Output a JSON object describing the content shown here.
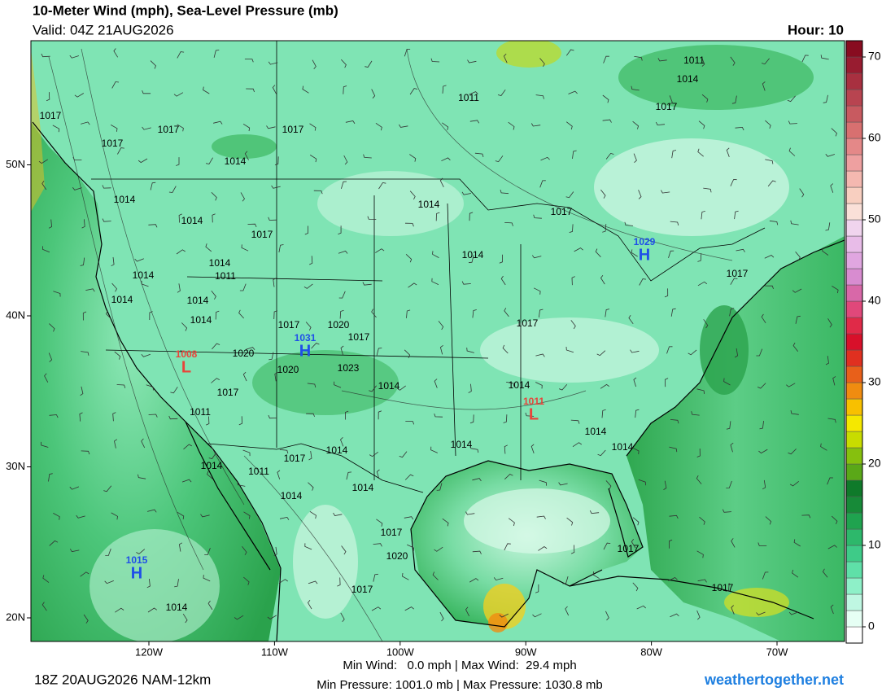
{
  "header": {
    "title": "10-Meter Wind (mph), Sea-Level Pressure (mb)",
    "valid": "Valid: 04Z 21AUG2026",
    "hour": "Hour: 10"
  },
  "map": {
    "lat_ticks": [
      {
        "value": 50,
        "label": "50N"
      },
      {
        "value": 40,
        "label": "40N"
      },
      {
        "value": 30,
        "label": "30N"
      },
      {
        "value": 20,
        "label": "20N"
      }
    ],
    "lon_ticks": [
      {
        "value": -120,
        "label": "120W"
      },
      {
        "value": -110,
        "label": "110W"
      },
      {
        "value": -100,
        "label": "100W"
      },
      {
        "value": -90,
        "label": "90W"
      },
      {
        "value": -80,
        "label": "80W"
      },
      {
        "value": -70,
        "label": "70W"
      }
    ],
    "pressure_centers": [
      {
        "type": "H",
        "value": 1015,
        "color": "#1f4fe8"
      },
      {
        "type": "H",
        "value": 1029,
        "color": "#1f4fe8"
      },
      {
        "type": "H",
        "value": 1031,
        "color": "#1f4fe8"
      },
      {
        "type": "L",
        "value": 1008,
        "color": "#e8443a"
      },
      {
        "type": "L",
        "value": 1011,
        "color": "#e8443a"
      }
    ],
    "isobar_labels": [
      1017,
      1017,
      1017,
      1017,
      1014,
      1011,
      1011,
      1014,
      1017,
      1014,
      1014,
      1017,
      1014,
      1017,
      1014,
      1014,
      1011,
      1014,
      1017,
      1014,
      1014,
      1014,
      1017,
      1020,
      1017,
      1017,
      1020,
      1020,
      1023,
      1014,
      1014,
      1017,
      1011,
      1014,
      1014,
      1014,
      1014,
      1017,
      1014,
      1011,
      1014,
      1014,
      1017,
      1020,
      1017,
      1017,
      1017,
      1014
    ]
  },
  "colorbar": {
    "lim": [
      -2,
      72
    ],
    "levels": [
      -2,
      0,
      2,
      4,
      6,
      8,
      10,
      12,
      14,
      16,
      18,
      20,
      22,
      24,
      26,
      28,
      30,
      32,
      34,
      36,
      38,
      40,
      42,
      44,
      46,
      48,
      50,
      52,
      54,
      56,
      58,
      60,
      62,
      64,
      66,
      68,
      70,
      72
    ],
    "colors": [
      "#ffffff",
      "#e6fff4",
      "#bff7e2",
      "#8ef0c8",
      "#5fe0a8",
      "#3ecb88",
      "#2db86b",
      "#1fa34f",
      "#178a38",
      "#0f7a2a",
      "#5aa818",
      "#86c00e",
      "#c8dc00",
      "#f5e800",
      "#f8c000",
      "#f08c10",
      "#e8601a",
      "#e03020",
      "#d8102a",
      "#e02a48",
      "#e0487a",
      "#d868a8",
      "#d88cd0",
      "#e0a6e0",
      "#e8bce8",
      "#f0d4ee",
      "#fae0d8",
      "#f8cfc0",
      "#f4b8b0",
      "#eea0a0",
      "#e48888",
      "#d87070",
      "#c85a60",
      "#b84450",
      "#a83040",
      "#981c30",
      "#880c20"
    ],
    "ticks": [
      0,
      10,
      20,
      30,
      40,
      50,
      60,
      70
    ]
  },
  "footer": {
    "run": "18Z 20AUG2026 NAM-12km",
    "wind_stats": "Min Wind:   0.0 mph | Max Wind:  29.4 mph",
    "pressure_stats": "Min Pressure: 1001.0 mb | Max Pressure: 1030.8 mb",
    "site": "weathertogether.net"
  }
}
